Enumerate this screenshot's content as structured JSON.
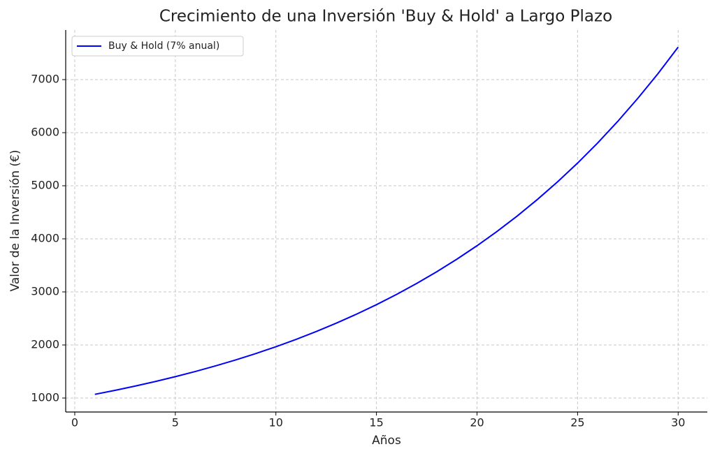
{
  "chart_data": {
    "type": "line",
    "title": "Crecimiento de una Inversión 'Buy & Hold' a Largo Plazo",
    "x_label": "Años",
    "y_label": "Valor de la Inversión (€)",
    "x": [
      1,
      2,
      3,
      4,
      5,
      6,
      7,
      8,
      9,
      10,
      11,
      12,
      13,
      14,
      15,
      16,
      17,
      18,
      19,
      20,
      21,
      22,
      23,
      24,
      25,
      26,
      27,
      28,
      29,
      30
    ],
    "series": [
      {
        "name": "Buy & Hold (7% anual)",
        "color": "#0000ff",
        "values": [
          1070,
          1145,
          1225,
          1311,
          1403,
          1501,
          1606,
          1718,
          1838,
          1967,
          2105,
          2252,
          2410,
          2579,
          2759,
          2952,
          3159,
          3380,
          3617,
          3870,
          4141,
          4430,
          4741,
          5072,
          5427,
          5807,
          6214,
          6649,
          7114,
          7612
        ]
      }
    ],
    "xlim": [
      -0.45,
      31.45
    ],
    "ylim": [
      737,
      7934
    ],
    "xticks": [
      0,
      5,
      10,
      15,
      20,
      25,
      30
    ],
    "yticks": [
      1000,
      2000,
      3000,
      4000,
      5000,
      6000,
      7000
    ],
    "grid": true,
    "legend": "upper left"
  }
}
